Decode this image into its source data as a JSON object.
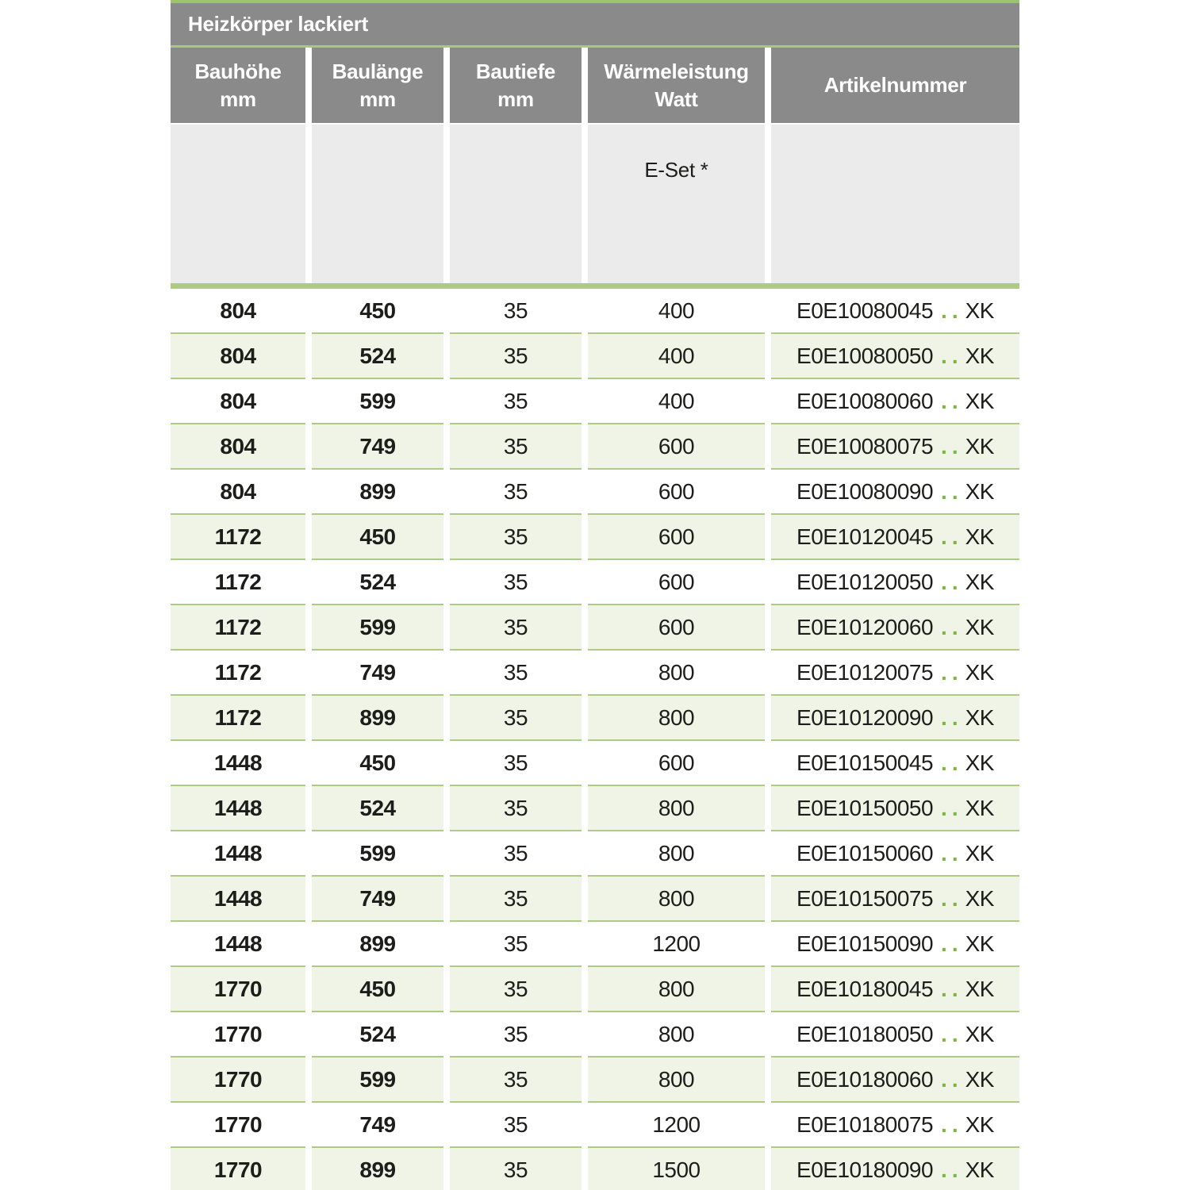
{
  "table": {
    "title": "Heizkörper lackiert",
    "columns": [
      {
        "line1": "Bauhöhe",
        "line2": "mm"
      },
      {
        "line1": "Baulänge",
        "line2": "mm"
      },
      {
        "line1": "Bautiefe",
        "line2": "mm"
      },
      {
        "line1": "Wärmeleistung",
        "line2": "Watt"
      },
      {
        "line1": "Artikelnummer",
        "line2": ""
      }
    ],
    "subheader": {
      "eset_label": "E-Set *"
    },
    "rows": [
      {
        "bauhoehe": "804",
        "baulaenge": "450",
        "bautiefe": "35",
        "watt": "400",
        "artikel": "E0E10080045",
        "dots": "..",
        "suffix": "XK"
      },
      {
        "bauhoehe": "804",
        "baulaenge": "524",
        "bautiefe": "35",
        "watt": "400",
        "artikel": "E0E10080050",
        "dots": "..",
        "suffix": "XK"
      },
      {
        "bauhoehe": "804",
        "baulaenge": "599",
        "bautiefe": "35",
        "watt": "400",
        "artikel": "E0E10080060",
        "dots": "..",
        "suffix": "XK"
      },
      {
        "bauhoehe": "804",
        "baulaenge": "749",
        "bautiefe": "35",
        "watt": "600",
        "artikel": "E0E10080075",
        "dots": "..",
        "suffix": "XK"
      },
      {
        "bauhoehe": "804",
        "baulaenge": "899",
        "bautiefe": "35",
        "watt": "600",
        "artikel": "E0E10080090",
        "dots": "..",
        "suffix": "XK"
      },
      {
        "bauhoehe": "1172",
        "baulaenge": "450",
        "bautiefe": "35",
        "watt": "600",
        "artikel": "E0E10120045",
        "dots": "..",
        "suffix": "XK"
      },
      {
        "bauhoehe": "1172",
        "baulaenge": "524",
        "bautiefe": "35",
        "watt": "600",
        "artikel": "E0E10120050",
        "dots": "..",
        "suffix": "XK"
      },
      {
        "bauhoehe": "1172",
        "baulaenge": "599",
        "bautiefe": "35",
        "watt": "600",
        "artikel": "E0E10120060",
        "dots": "..",
        "suffix": "XK"
      },
      {
        "bauhoehe": "1172",
        "baulaenge": "749",
        "bautiefe": "35",
        "watt": "800",
        "artikel": "E0E10120075",
        "dots": "..",
        "suffix": "XK"
      },
      {
        "bauhoehe": "1172",
        "baulaenge": "899",
        "bautiefe": "35",
        "watt": "800",
        "artikel": "E0E10120090",
        "dots": "..",
        "suffix": "XK"
      },
      {
        "bauhoehe": "1448",
        "baulaenge": "450",
        "bautiefe": "35",
        "watt": "600",
        "artikel": "E0E10150045",
        "dots": "..",
        "suffix": "XK"
      },
      {
        "bauhoehe": "1448",
        "baulaenge": "524",
        "bautiefe": "35",
        "watt": "800",
        "artikel": "E0E10150050",
        "dots": "..",
        "suffix": "XK"
      },
      {
        "bauhoehe": "1448",
        "baulaenge": "599",
        "bautiefe": "35",
        "watt": "800",
        "artikel": "E0E10150060",
        "dots": "..",
        "suffix": "XK"
      },
      {
        "bauhoehe": "1448",
        "baulaenge": "749",
        "bautiefe": "35",
        "watt": "800",
        "artikel": "E0E10150075",
        "dots": "..",
        "suffix": "XK"
      },
      {
        "bauhoehe": "1448",
        "baulaenge": "899",
        "bautiefe": "35",
        "watt": "1200",
        "artikel": "E0E10150090",
        "dots": "..",
        "suffix": "XK"
      },
      {
        "bauhoehe": "1770",
        "baulaenge": "450",
        "bautiefe": "35",
        "watt": "800",
        "artikel": "E0E10180045",
        "dots": "..",
        "suffix": "XK"
      },
      {
        "bauhoehe": "1770",
        "baulaenge": "524",
        "bautiefe": "35",
        "watt": "800",
        "artikel": "E0E10180050",
        "dots": "..",
        "suffix": "XK"
      },
      {
        "bauhoehe": "1770",
        "baulaenge": "599",
        "bautiefe": "35",
        "watt": "800",
        "artikel": "E0E10180060",
        "dots": "..",
        "suffix": "XK"
      },
      {
        "bauhoehe": "1770",
        "baulaenge": "749",
        "bautiefe": "35",
        "watt": "1200",
        "artikel": "E0E10180075",
        "dots": "..",
        "suffix": "XK"
      },
      {
        "bauhoehe": "1770",
        "baulaenge": "899",
        "bautiefe": "35",
        "watt": "1500",
        "artikel": "E0E10180090",
        "dots": "..",
        "suffix": "XK"
      }
    ]
  },
  "colors": {
    "header_gray": "#8a8a8a",
    "subheader_gray": "#ebebeb",
    "row_green": "#eff4e6",
    "separator_green": "#aecb85",
    "top_line_green": "#9cc46c",
    "dots_green": "#7cb53f",
    "text_dark": "#1d1d1b",
    "header_text": "#ffffff"
  }
}
